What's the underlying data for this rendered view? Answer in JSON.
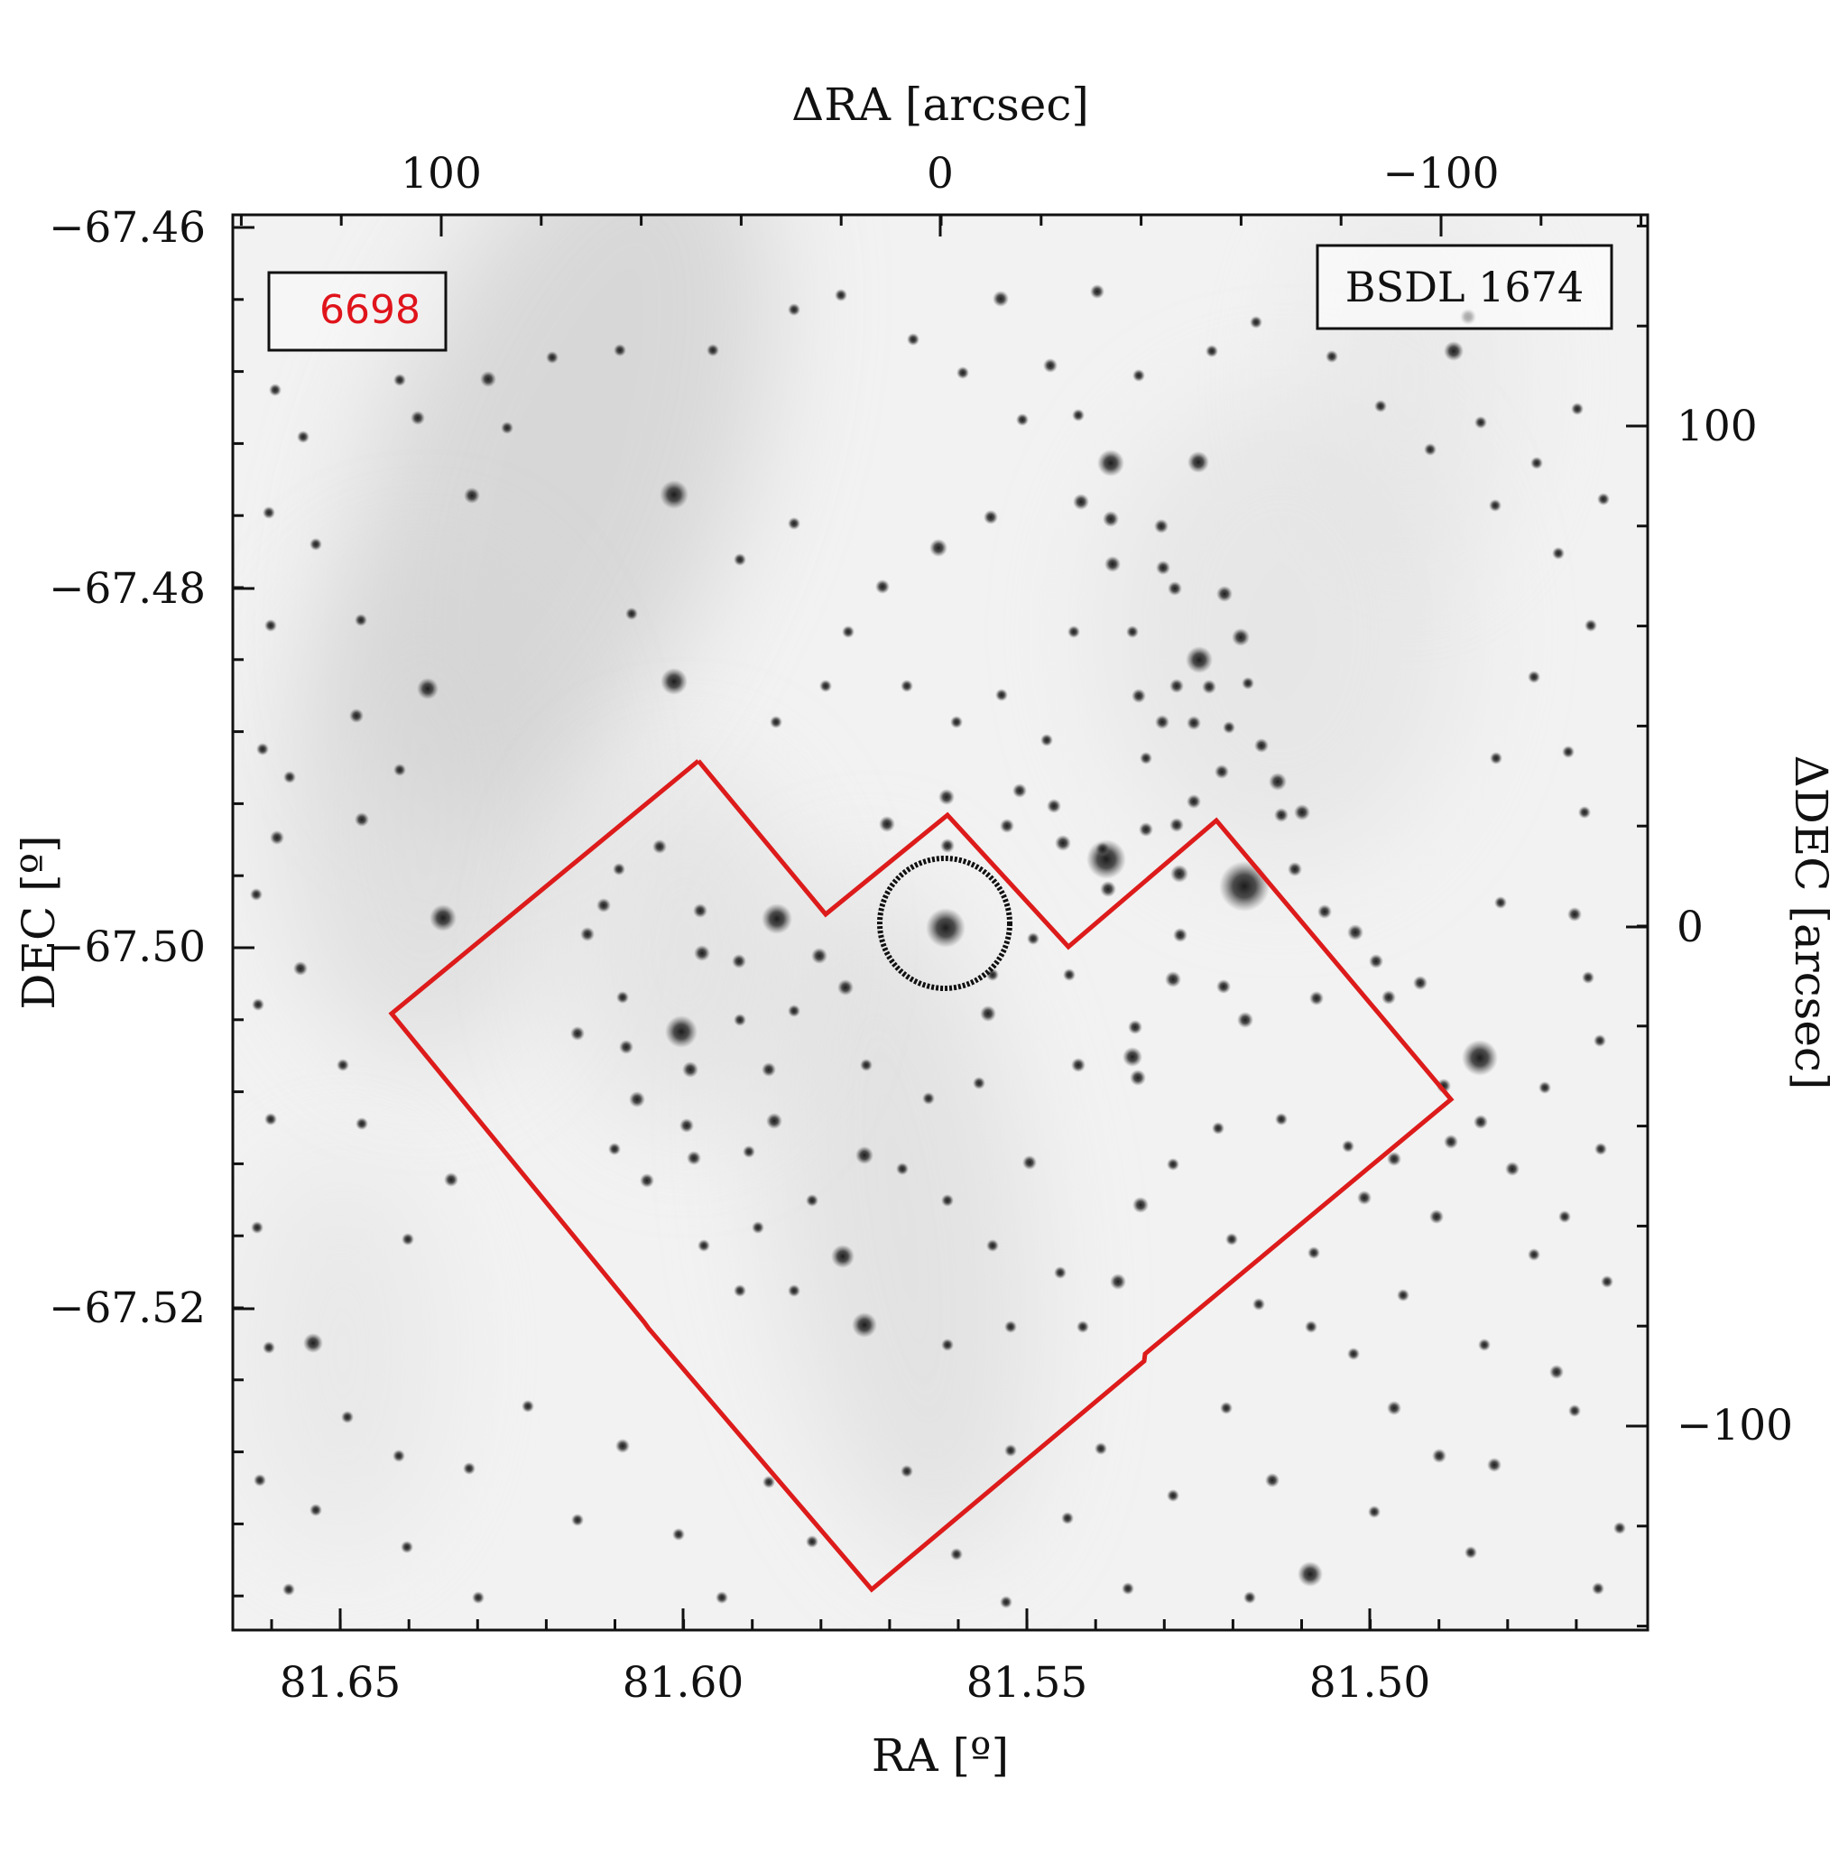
{
  "image": {
    "kind": "grayscale sky image with stars and diffuse nebulosity",
    "frame_color": "#111111"
  },
  "axes": {
    "bottom": {
      "label": "RA [º]",
      "ticks": [
        "81.65",
        "81.60",
        "81.55",
        "81.50"
      ]
    },
    "left": {
      "label": "DEC [º]",
      "ticks": [
        "−67.46",
        "−67.48",
        "−67.50",
        "−67.52"
      ]
    },
    "top": {
      "label": "ΔRA [arcsec]",
      "ticks": [
        "100",
        "0",
        "−100"
      ]
    },
    "right": {
      "label": "ΔDEC [arcsec]",
      "ticks": [
        "100",
        "0",
        "−100"
      ]
    }
  },
  "labels": {
    "id_box": {
      "text": "6698",
      "color": "#e0141b"
    },
    "name_box": {
      "text": "BSDL 1674"
    }
  },
  "overlays": {
    "polygon_color": "#dd1b1b",
    "circle_color": "#111111"
  }
}
